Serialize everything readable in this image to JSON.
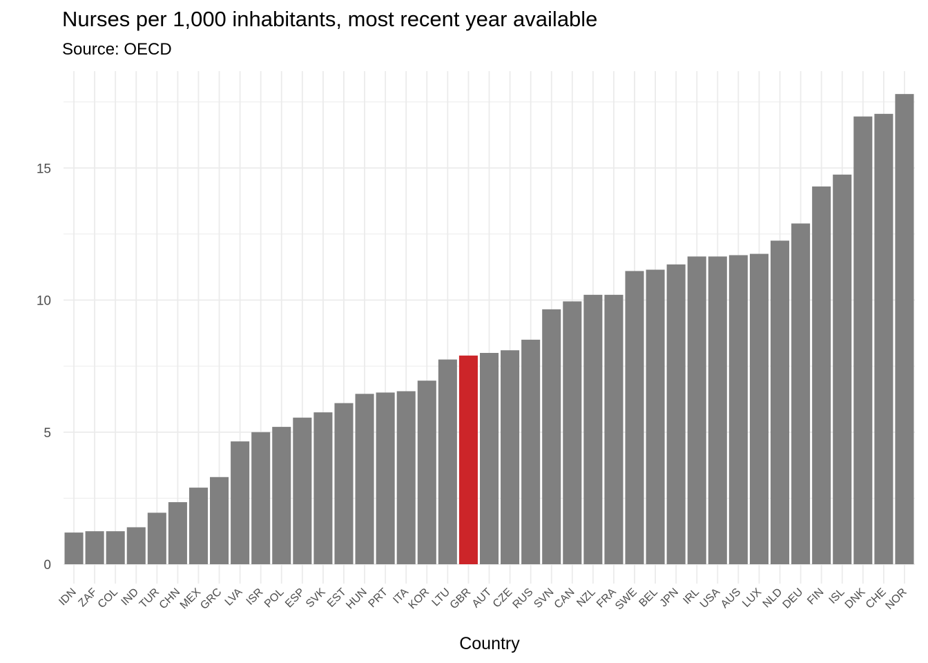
{
  "chart_data": {
    "type": "bar",
    "title": "Nurses per 1,000 inhabitants, most recent year available",
    "subtitle": "Source: OECD",
    "xlabel": "Country",
    "ylabel": "",
    "ylim": [
      0,
      18
    ],
    "yticks": [
      0,
      5,
      10,
      15
    ],
    "grid": true,
    "highlight_category": "GBR",
    "colors": {
      "bar": "#808080",
      "highlight": "#cc2529",
      "grid": "#ebebeb"
    },
    "categories": [
      "IDN",
      "ZAF",
      "COL",
      "IND",
      "TUR",
      "CHN",
      "MEX",
      "GRC",
      "LVA",
      "ISR",
      "POL",
      "ESP",
      "SVK",
      "EST",
      "HUN",
      "PRT",
      "ITA",
      "KOR",
      "LTU",
      "GBR",
      "AUT",
      "CZE",
      "RUS",
      "SVN",
      "CAN",
      "NZL",
      "FRA",
      "SWE",
      "BEL",
      "JPN",
      "IRL",
      "USA",
      "AUS",
      "LUX",
      "NLD",
      "DEU",
      "FIN",
      "ISL",
      "DNK",
      "CHE",
      "NOR"
    ],
    "values": [
      1.2,
      1.25,
      1.25,
      1.4,
      1.95,
      2.35,
      2.9,
      3.3,
      4.65,
      5.0,
      5.2,
      5.55,
      5.75,
      6.1,
      6.45,
      6.5,
      6.55,
      6.95,
      7.75,
      7.9,
      8.0,
      8.1,
      8.5,
      9.65,
      9.95,
      10.2,
      10.2,
      11.1,
      11.15,
      11.35,
      11.65,
      11.65,
      11.7,
      11.75,
      12.25,
      12.9,
      14.3,
      14.75,
      16.95,
      17.05,
      17.8
    ]
  }
}
